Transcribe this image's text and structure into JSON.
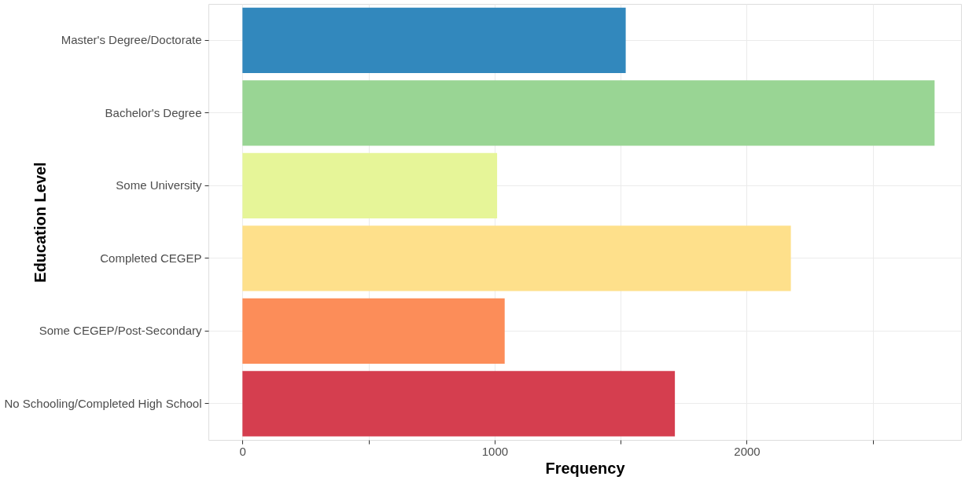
{
  "chart_data": {
    "type": "bar",
    "orientation": "horizontal",
    "xlabel": "Frequency",
    "ylabel": "Education Level",
    "categories": [
      "Master's Degree/Doctorate",
      "Bachelor's Degree",
      "Some University",
      "Completed CEGEP",
      "Some CEGEP/Post-Secondary",
      "No Schooling/Completed High School"
    ],
    "values": [
      1520,
      2745,
      1010,
      2175,
      1040,
      1715
    ],
    "colors": [
      "#3288bd",
      "#99d594",
      "#e6f598",
      "#fee08b",
      "#fc8d59",
      "#d53e4f"
    ],
    "xlim": [
      -135,
      2850
    ],
    "xticks": [
      0,
      {
        "value": 500,
        "label": null
      },
      1000,
      {
        "value": 1500,
        "label": null
      },
      2000,
      {
        "value": 2500,
        "label": null
      }
    ],
    "grid": true
  }
}
